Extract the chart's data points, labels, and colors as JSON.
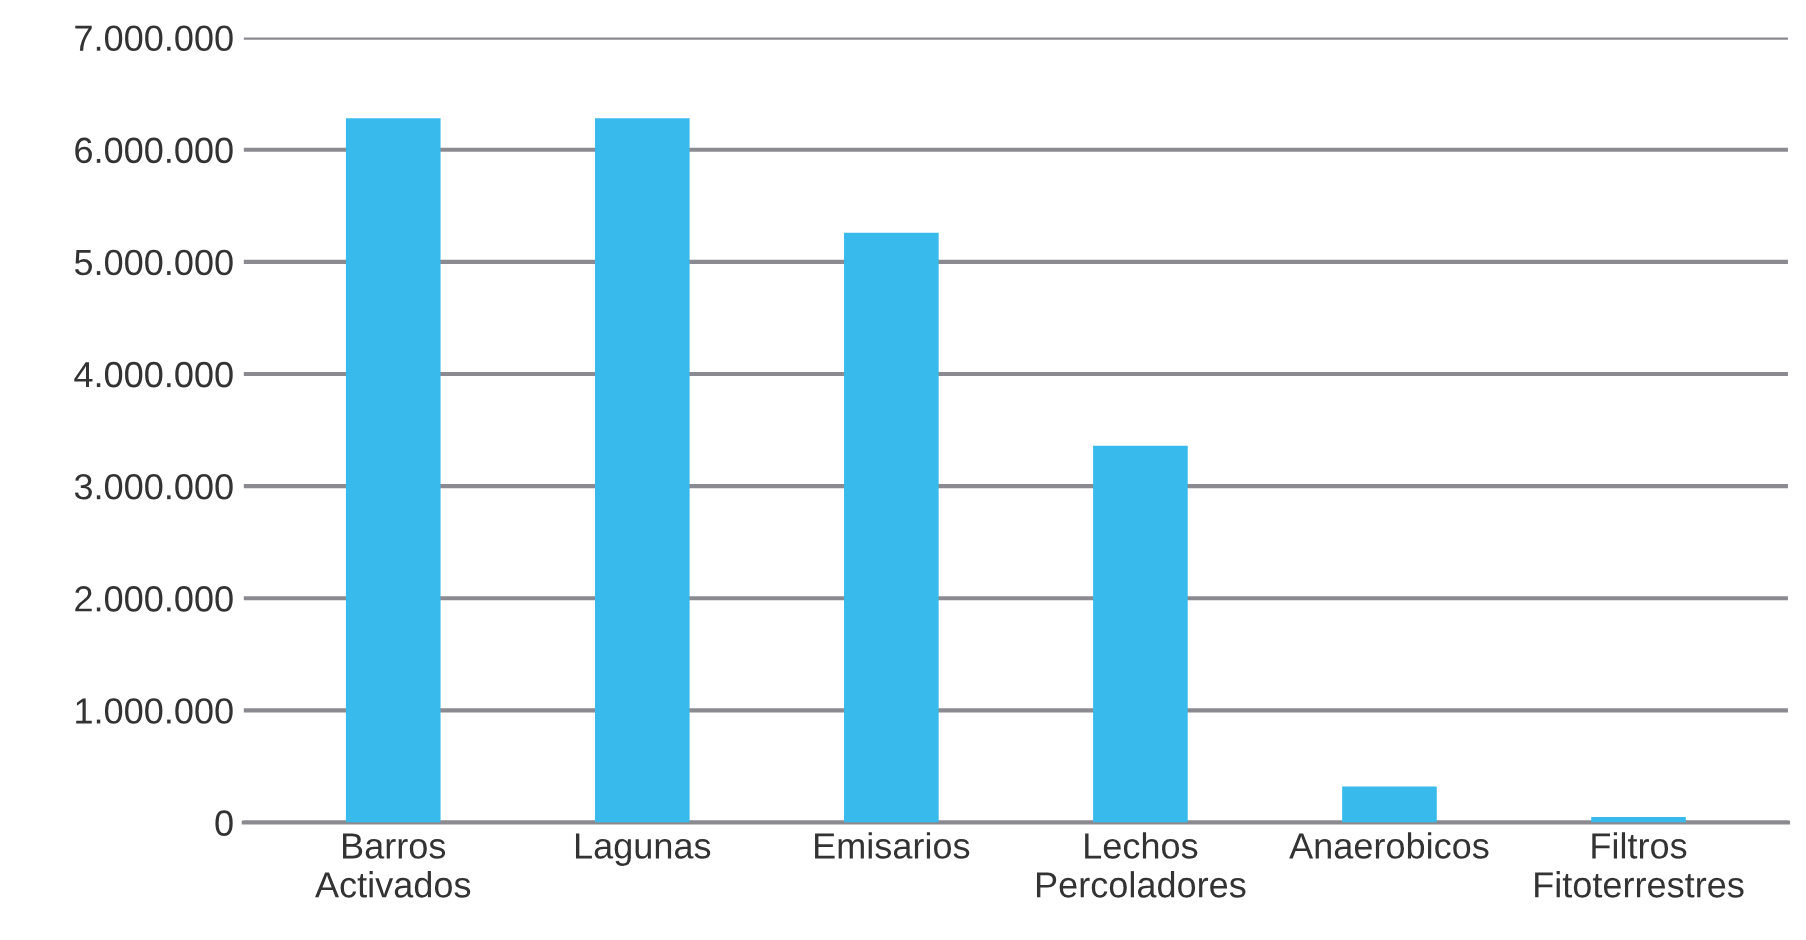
{
  "chart_data": {
    "type": "bar",
    "categories": [
      "Barros\nActivados",
      "Lagunas",
      "Emisarios",
      "Lechos\nPercoladores",
      "Anaerobicos",
      "Filtros\nFitoterrestres"
    ],
    "values": [
      6280000,
      6280000,
      5260000,
      3360000,
      320000,
      50000
    ],
    "color": "#38bbec",
    "ylim": [
      0,
      7000000
    ],
    "yticks": [
      {
        "value": 0,
        "label": "0"
      },
      {
        "value": 1000000,
        "label": "1.000.000"
      },
      {
        "value": 2000000,
        "label": "2.000.000"
      },
      {
        "value": 3000000,
        "label": "3.000.000"
      },
      {
        "value": 4000000,
        "label": "4.000.000"
      },
      {
        "value": 5000000,
        "label": "5.000.000"
      },
      {
        "value": 6000000,
        "label": "6.000.000"
      },
      {
        "value": 7000000,
        "label": "7.000.000"
      }
    ],
    "grid": "y"
  }
}
